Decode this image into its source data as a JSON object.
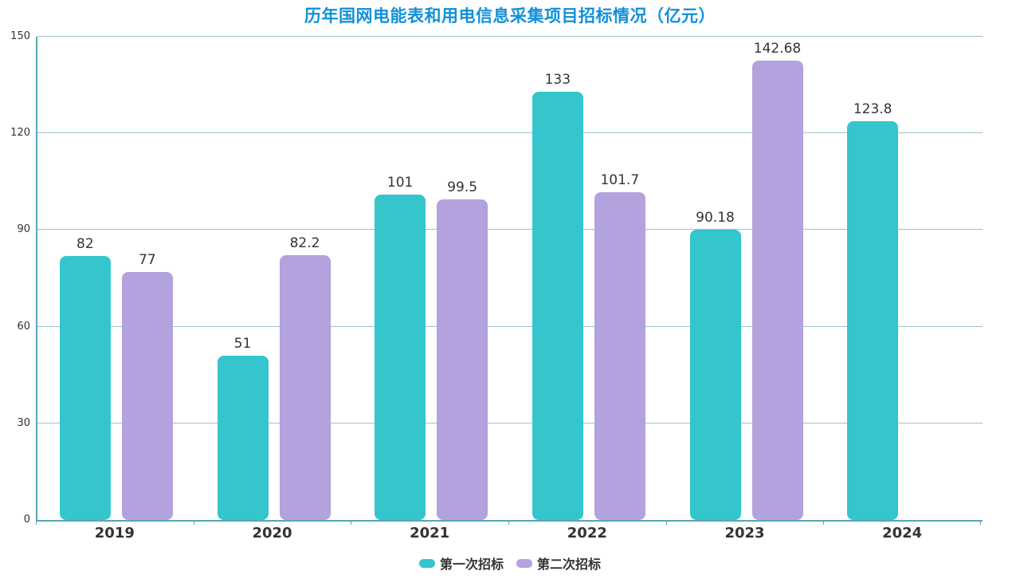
{
  "title": "历年国网电能表和用电信息采集项目招标情况（亿元）",
  "colors": {
    "title": "#1190d8",
    "series1": "#35c5cc",
    "series2": "#b3a2dd",
    "gridline": "#9ac4cd",
    "axis": "#5aa6b4",
    "text": "#333333"
  },
  "legend": {
    "items": [
      {
        "label": "第一次招标",
        "color": "#35c5cc"
      },
      {
        "label": "第二次招标",
        "color": "#b3a2dd"
      }
    ],
    "position": "bottom"
  },
  "chart_data": {
    "type": "bar",
    "title": "历年国网电能表和用电信息采集项目招标情况（亿元）",
    "categories": [
      "2019",
      "2020",
      "2021",
      "2022",
      "2023",
      "2024"
    ],
    "series": [
      {
        "name": "第一次招标",
        "color": "#35c5cc",
        "values": [
          82,
          51,
          101,
          133,
          90.18,
          123.8
        ]
      },
      {
        "name": "第二次招标",
        "color": "#b3a2dd",
        "values": [
          77,
          82.2,
          99.5,
          101.7,
          142.68,
          null
        ]
      }
    ],
    "xlabel": "",
    "ylabel": "",
    "ylim": [
      0,
      150
    ],
    "yticks": [
      0,
      30,
      60,
      90,
      120,
      150
    ],
    "grid": true,
    "legend_position": "bottom",
    "bar_value_labels": true
  }
}
